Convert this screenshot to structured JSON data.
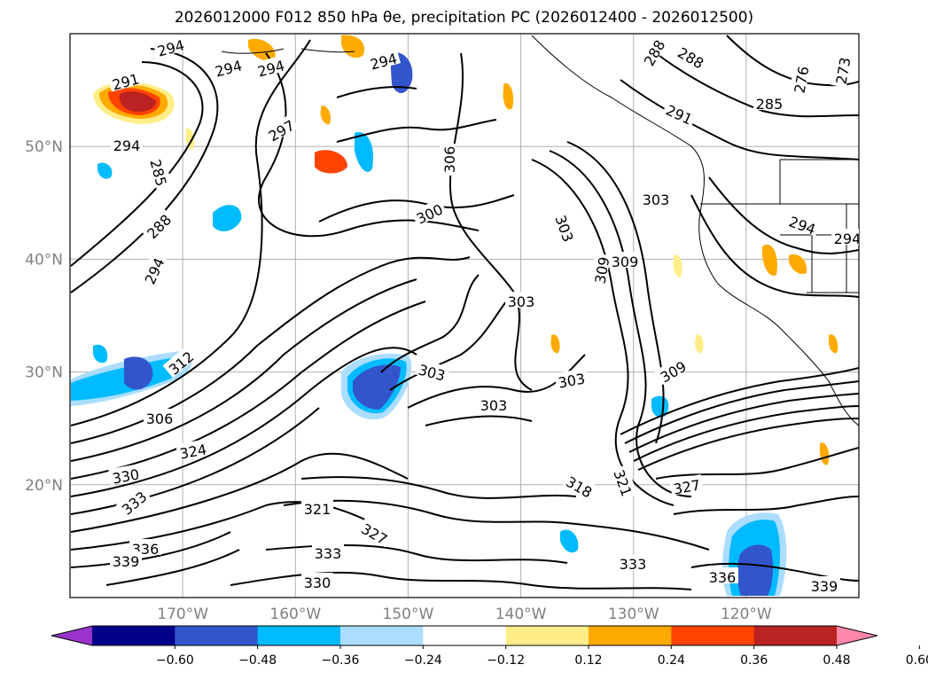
{
  "title": "2026012000 F012 850 hPa θe, precipitation PC (2026012400 - 2026012500)",
  "map": {
    "projection": "plate-carree",
    "lon_range": [
      -180,
      -110
    ],
    "lat_range": [
      10,
      60
    ],
    "lat_ticks": [
      "50°N",
      "40°N",
      "30°N",
      "20°N"
    ],
    "lon_ticks": [
      "170°W",
      "160°W",
      "150°W",
      "140°W",
      "130°W",
      "120°W"
    ],
    "gridlines": true,
    "contour_labels": [
      "294",
      "294",
      "294",
      "294",
      "291",
      "294",
      "297",
      "285",
      "288",
      "294",
      "306",
      "300",
      "303",
      "309",
      "303",
      "303",
      "303",
      "303",
      "309",
      "312",
      "306",
      "324",
      "330",
      "333",
      "336",
      "339",
      "321",
      "327",
      "333",
      "330",
      "318",
      "321",
      "327",
      "333",
      "336",
      "339",
      "288",
      "288",
      "291",
      "285",
      "276",
      "273",
      "303",
      "294",
      "294",
      "309"
    ]
  },
  "colorbar": {
    "orientation": "horizontal",
    "extend": "both",
    "bins": [
      "#9933cc",
      "#000088",
      "#3355cc",
      "#00bbff",
      "#aaddff",
      "#ffffff",
      "#ffee88",
      "#ffaa00",
      "#ff4400",
      "#bb2222",
      "#ff88aa"
    ],
    "tick_labels": [
      "−0.60",
      "−0.48",
      "−0.36",
      "−0.24",
      "−0.12",
      "0.12",
      "0.24",
      "0.36",
      "0.48",
      "0.60"
    ]
  }
}
